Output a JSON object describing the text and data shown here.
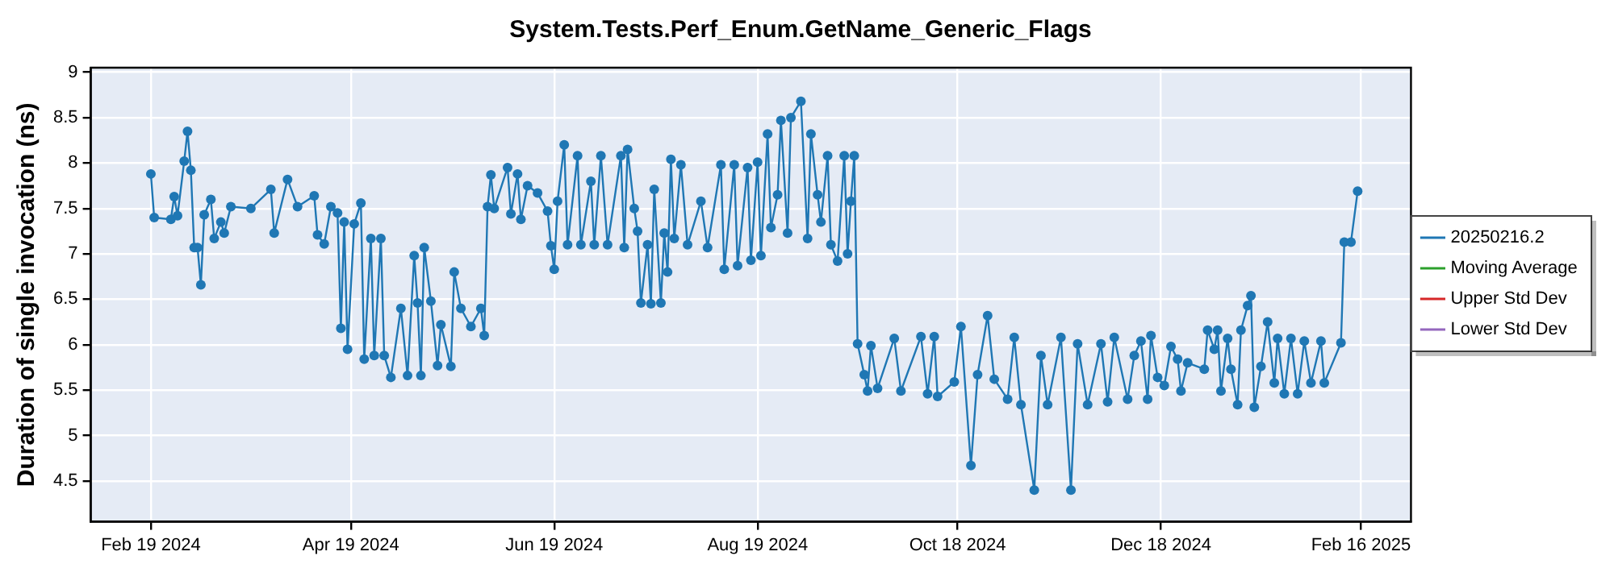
{
  "chart_data": {
    "type": "line",
    "title": "System.Tests.Perf_Enum.GetName_Generic_Flags",
    "ylabel": "Duration of single invocation (ns)",
    "xlim": [
      "2024-02-01",
      "2025-03-03"
    ],
    "xticks": [
      {
        "value": "2024-02-19",
        "label": "Feb 19 2024"
      },
      {
        "value": "2024-04-19",
        "label": "Apr 19 2024"
      },
      {
        "value": "2024-06-19",
        "label": "Jun 19 2024"
      },
      {
        "value": "2024-08-19",
        "label": "Aug 19 2024"
      },
      {
        "value": "2024-10-18",
        "label": "Oct 18 2024"
      },
      {
        "value": "2024-12-18",
        "label": "Dec 18 2024"
      },
      {
        "value": "2025-02-16",
        "label": "Feb 16 2025"
      }
    ],
    "ylim": [
      4.05,
      9.05
    ],
    "yticks": [
      4.5,
      5,
      5.5,
      6,
      6.5,
      7,
      7.5,
      8,
      8.5,
      9
    ],
    "grid": true,
    "legend": "right",
    "marker": "circle",
    "line_style": "solid",
    "x": [
      "2024-02-19",
      "2024-02-20",
      "2024-02-25",
      "2024-02-26",
      "2024-02-27",
      "2024-02-29",
      "2024-03-01",
      "2024-03-02",
      "2024-03-03",
      "2024-03-04",
      "2024-03-05",
      "2024-03-06",
      "2024-03-08",
      "2024-03-09",
      "2024-03-11",
      "2024-03-12",
      "2024-03-14",
      "2024-03-20",
      "2024-03-26",
      "2024-03-27",
      "2024-03-31",
      "2024-04-03",
      "2024-04-08",
      "2024-04-09",
      "2024-04-11",
      "2024-04-13",
      "2024-04-15",
      "2024-04-16",
      "2024-04-17",
      "2024-04-18",
      "2024-04-20",
      "2024-04-22",
      "2024-04-23",
      "2024-04-25",
      "2024-04-26",
      "2024-04-28",
      "2024-04-29",
      "2024-05-01",
      "2024-05-04",
      "2024-05-06",
      "2024-05-08",
      "2024-05-09",
      "2024-05-10",
      "2024-05-11",
      "2024-05-13",
      "2024-05-15",
      "2024-05-16",
      "2024-05-19",
      "2024-05-20",
      "2024-05-22",
      "2024-05-25",
      "2024-05-28",
      "2024-05-29",
      "2024-05-30",
      "2024-05-31",
      "2024-06-01",
      "2024-06-05",
      "2024-06-06",
      "2024-06-08",
      "2024-06-09",
      "2024-06-11",
      "2024-06-14",
      "2024-06-17",
      "2024-06-18",
      "2024-06-19",
      "2024-06-20",
      "2024-06-22",
      "2024-06-23",
      "2024-06-26",
      "2024-06-27",
      "2024-06-30",
      "2024-07-01",
      "2024-07-03",
      "2024-07-05",
      "2024-07-09",
      "2024-07-10",
      "2024-07-11",
      "2024-07-13",
      "2024-07-14",
      "2024-07-15",
      "2024-07-17",
      "2024-07-18",
      "2024-07-19",
      "2024-07-21",
      "2024-07-22",
      "2024-07-23",
      "2024-07-24",
      "2024-07-25",
      "2024-07-27",
      "2024-07-29",
      "2024-08-02",
      "2024-08-04",
      "2024-08-08",
      "2024-08-09",
      "2024-08-12",
      "2024-08-13",
      "2024-08-16",
      "2024-08-17",
      "2024-08-19",
      "2024-08-20",
      "2024-08-22",
      "2024-08-23",
      "2024-08-25",
      "2024-08-26",
      "2024-08-28",
      "2024-08-29",
      "2024-09-01",
      "2024-09-03",
      "2024-09-04",
      "2024-09-06",
      "2024-09-07",
      "2024-09-09",
      "2024-09-10",
      "2024-09-12",
      "2024-09-14",
      "2024-09-15",
      "2024-09-16",
      "2024-09-17",
      "2024-09-18",
      "2024-09-20",
      "2024-09-21",
      "2024-09-22",
      "2024-09-24",
      "2024-09-29",
      "2024-10-01",
      "2024-10-07",
      "2024-10-09",
      "2024-10-11",
      "2024-10-12",
      "2024-10-17",
      "2024-10-19",
      "2024-10-22",
      "2024-10-24",
      "2024-10-27",
      "2024-10-29",
      "2024-11-02",
      "2024-11-04",
      "2024-11-06",
      "2024-11-10",
      "2024-11-12",
      "2024-11-14",
      "2024-11-18",
      "2024-11-21",
      "2024-11-23",
      "2024-11-26",
      "2024-11-30",
      "2024-12-02",
      "2024-12-04",
      "2024-12-08",
      "2024-12-10",
      "2024-12-12",
      "2024-12-14",
      "2024-12-15",
      "2024-12-17",
      "2024-12-19",
      "2024-12-21",
      "2024-12-23",
      "2024-12-24",
      "2024-12-26",
      "2024-12-31",
      "2025-01-01",
      "2025-01-03",
      "2025-01-04",
      "2025-01-05",
      "2025-01-07",
      "2025-01-08",
      "2025-01-10",
      "2025-01-11",
      "2025-01-13",
      "2025-01-14",
      "2025-01-15",
      "2025-01-17",
      "2025-01-19",
      "2025-01-21",
      "2025-01-22",
      "2025-01-24",
      "2025-01-26",
      "2025-01-28",
      "2025-01-30",
      "2025-02-01",
      "2025-02-04",
      "2025-02-05",
      "2025-02-10",
      "2025-02-11",
      "2025-02-13",
      "2025-02-15"
    ],
    "series": [
      {
        "name": "20250216.2",
        "color": "#1f77b4",
        "values": [
          7.88,
          7.4,
          7.38,
          7.63,
          7.42,
          8.02,
          8.35,
          7.92,
          7.07,
          7.07,
          6.66,
          7.43,
          7.6,
          7.17,
          7.35,
          7.23,
          7.52,
          7.5,
          7.71,
          7.23,
          7.82,
          7.52,
          7.64,
          7.21,
          7.11,
          7.52,
          7.45,
          6.18,
          7.35,
          5.95,
          7.33,
          7.56,
          5.84,
          7.17,
          5.88,
          7.17,
          5.88,
          5.64,
          6.4,
          5.66,
          6.98,
          6.46,
          5.66,
          7.07,
          6.48,
          5.77,
          6.22,
          5.76,
          6.8,
          6.4,
          6.2,
          6.4,
          6.1,
          7.52,
          7.87,
          7.5,
          7.95,
          7.44,
          7.88,
          7.38,
          7.75,
          7.67,
          7.47,
          7.09,
          6.83,
          7.58,
          8.2,
          7.1,
          8.08,
          7.1,
          7.8,
          7.1,
          8.08,
          7.1,
          8.08,
          7.07,
          8.15,
          7.5,
          7.25,
          6.46,
          7.1,
          6.45,
          7.71,
          6.46,
          7.23,
          6.8,
          8.04,
          7.17,
          7.98,
          7.1,
          7.58,
          7.07,
          7.98,
          6.83,
          7.98,
          6.87,
          7.95,
          6.93,
          8.01,
          6.98,
          8.32,
          7.29,
          7.65,
          8.47,
          7.23,
          8.5,
          8.68,
          7.17,
          8.32,
          7.65,
          7.35,
          8.08,
          7.1,
          6.92,
          8.08,
          7.0,
          7.58,
          8.08,
          6.01,
          5.67,
          5.49,
          5.99,
          5.52,
          6.07,
          5.49,
          6.09,
          5.46,
          6.09,
          5.43,
          5.59,
          6.2,
          4.67,
          5.67,
          6.32,
          5.62,
          5.4,
          6.08,
          5.34,
          4.4,
          5.88,
          5.34,
          6.08,
          4.4,
          6.01,
          5.34,
          6.01,
          5.37,
          6.08,
          5.4,
          5.88,
          6.04,
          5.4,
          6.1,
          5.64,
          5.55,
          5.98,
          5.84,
          5.49,
          5.8,
          5.73,
          6.16,
          5.95,
          6.16,
          5.49,
          6.07,
          5.73,
          5.34,
          6.16,
          6.43,
          6.54,
          5.31,
          5.76,
          6.25,
          5.58,
          6.07,
          5.46,
          6.07,
          5.46,
          6.04,
          5.58,
          6.04,
          5.58,
          6.02,
          7.13,
          7.13,
          7.69
        ]
      },
      {
        "name": "Moving Average",
        "color": "#2ca02c",
        "values": [
          null,
          null,
          null,
          null,
          null,
          null,
          null,
          null,
          null,
          null,
          null,
          null,
          null,
          null,
          null,
          null,
          null,
          null,
          null,
          null,
          null,
          null,
          null,
          null,
          null,
          null,
          null,
          null,
          null,
          null,
          null,
          null,
          null,
          null,
          null,
          null,
          null,
          null,
          null,
          null,
          null,
          null,
          null,
          null,
          null,
          null,
          null,
          null,
          null,
          null,
          null,
          null,
          null,
          null,
          null,
          null,
          null,
          null,
          null,
          null,
          null,
          null,
          null,
          null,
          null,
          null,
          null,
          null,
          null,
          null,
          null,
          null,
          null,
          null,
          null,
          null,
          null,
          null,
          null,
          null,
          null,
          null,
          null,
          null,
          null,
          null,
          null,
          null,
          null,
          null,
          null,
          null,
          null,
          null,
          null,
          null,
          null,
          null,
          null,
          null,
          null,
          null,
          null,
          null,
          null,
          null,
          null,
          null,
          null,
          null,
          null,
          null,
          null,
          null,
          null,
          null,
          null,
          null,
          null,
          null,
          null,
          null,
          null,
          null,
          null,
          null,
          null,
          null,
          null,
          null,
          null,
          null,
          null,
          null,
          null,
          null,
          null,
          null,
          null,
          null,
          null,
          null,
          null,
          null,
          null,
          null,
          null,
          null,
          null,
          null,
          null,
          null,
          null,
          null,
          null,
          null,
          null,
          null,
          null,
          null,
          null,
          null,
          null,
          null,
          null,
          null,
          null,
          null,
          null,
          null,
          null,
          null,
          null,
          null,
          null,
          null,
          null,
          null,
          null,
          null,
          null,
          null,
          null,
          null,
          null,
          null
        ]
      },
      {
        "name": "Upper Std Dev",
        "color": "#d62728",
        "values": [
          null,
          null,
          null,
          null,
          null,
          null,
          null,
          null,
          null,
          null,
          null,
          null,
          null,
          null,
          null,
          null,
          null,
          null,
          null,
          null,
          null,
          null,
          null,
          null,
          null,
          null,
          null,
          null,
          null,
          null,
          null,
          null,
          null,
          null,
          null,
          null,
          null,
          null,
          null,
          null,
          null,
          null,
          null,
          null,
          null,
          null,
          null,
          null,
          null,
          null,
          null,
          null,
          null,
          null,
          null,
          null,
          null,
          null,
          null,
          null,
          null,
          null,
          null,
          null,
          null,
          null,
          null,
          null,
          null,
          null,
          null,
          null,
          null,
          null,
          null,
          null,
          null,
          null,
          null,
          null,
          null,
          null,
          null,
          null,
          null,
          null,
          null,
          null,
          null,
          null,
          null,
          null,
          null,
          null,
          null,
          null,
          null,
          null,
          null,
          null,
          null,
          null,
          null,
          null,
          null,
          null,
          null,
          null,
          null,
          null,
          null,
          null,
          null,
          null,
          null,
          null,
          null,
          null,
          null,
          null,
          null,
          null,
          null,
          null,
          null,
          null,
          null,
          null,
          null,
          null,
          null,
          null,
          null,
          null,
          null,
          null,
          null,
          null,
          null,
          null,
          null,
          null,
          null,
          null,
          null,
          null,
          null,
          null,
          null,
          null,
          null,
          null,
          null,
          null,
          null,
          null,
          null,
          null,
          null,
          null,
          null,
          null,
          null,
          null,
          null,
          null,
          null,
          null,
          null,
          null,
          null,
          null,
          null,
          null,
          null,
          null,
          null,
          null,
          null,
          null,
          null,
          null,
          null,
          null,
          null,
          null
        ]
      },
      {
        "name": "Lower Std Dev",
        "color": "#9467bd",
        "values": [
          null,
          null,
          null,
          null,
          null,
          null,
          null,
          null,
          null,
          null,
          null,
          null,
          null,
          null,
          null,
          null,
          null,
          null,
          null,
          null,
          null,
          null,
          null,
          null,
          null,
          null,
          null,
          null,
          null,
          null,
          null,
          null,
          null,
          null,
          null,
          null,
          null,
          null,
          null,
          null,
          null,
          null,
          null,
          null,
          null,
          null,
          null,
          null,
          null,
          null,
          null,
          null,
          null,
          null,
          null,
          null,
          null,
          null,
          null,
          null,
          null,
          null,
          null,
          null,
          null,
          null,
          null,
          null,
          null,
          null,
          null,
          null,
          null,
          null,
          null,
          null,
          null,
          null,
          null,
          null,
          null,
          null,
          null,
          null,
          null,
          null,
          null,
          null,
          null,
          null,
          null,
          null,
          null,
          null,
          null,
          null,
          null,
          null,
          null,
          null,
          null,
          null,
          null,
          null,
          null,
          null,
          null,
          null,
          null,
          null,
          null,
          null,
          null,
          null,
          null,
          null,
          null,
          null,
          null,
          null,
          null,
          null,
          null,
          null,
          null,
          null,
          null,
          null,
          null,
          null,
          null,
          null,
          null,
          null,
          null,
          null,
          null,
          null,
          null,
          null,
          null,
          null,
          null,
          null,
          null,
          null,
          null,
          null,
          null,
          null,
          null,
          null,
          null,
          null,
          null,
          null,
          null,
          null,
          null,
          null,
          null,
          null,
          null,
          null,
          null,
          null,
          null,
          null,
          null,
          null,
          null,
          null,
          null,
          null,
          null,
          null,
          null,
          null,
          null,
          null,
          null,
          null,
          null,
          null,
          null,
          null
        ]
      }
    ]
  }
}
